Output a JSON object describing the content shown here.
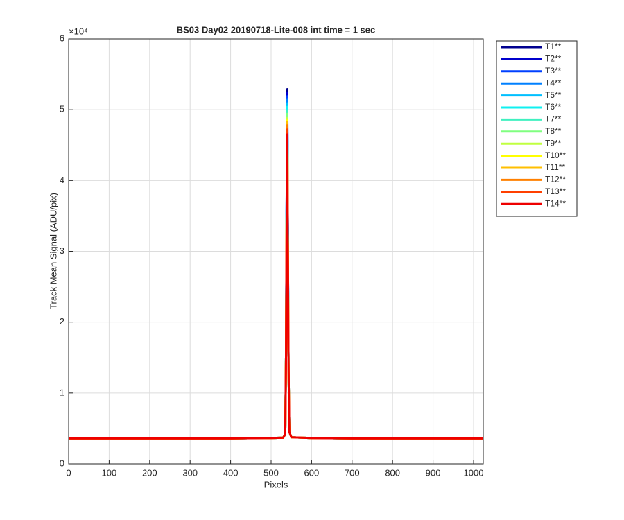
{
  "chart_data": {
    "type": "line",
    "title": "BS03 Day02 20190718-Lite-008 int time = 1 sec",
    "xlabel": "Pixels",
    "ylabel": "Track Mean Signal (ADU/pix)",
    "y_exponent_label": "×10⁴",
    "xlim": [
      0,
      1024
    ],
    "xticks": [
      0,
      100,
      200,
      300,
      400,
      500,
      600,
      700,
      800,
      900,
      1000
    ],
    "ylim": [
      0,
      60000
    ],
    "yticks": [
      {
        "value": 0,
        "label": "0"
      },
      {
        "value": 10000,
        "label": "1"
      },
      {
        "value": 20000,
        "label": "2"
      },
      {
        "value": 30000,
        "label": "3"
      },
      {
        "value": 40000,
        "label": "4"
      },
      {
        "value": 50000,
        "label": "5"
      },
      {
        "value": 60000,
        "label": "6"
      }
    ],
    "grid": true,
    "legend": "outside-right",
    "x": [
      0,
      100,
      200,
      300,
      400,
      500,
      530,
      535,
      537,
      539,
      540,
      541,
      543,
      545,
      550,
      600,
      700,
      800,
      900,
      1000,
      1024
    ],
    "series": [
      {
        "name": "T1**",
        "color": "#00008f",
        "values": [
          3600,
          3600,
          3600,
          3600,
          3600,
          3650,
          3700,
          4200,
          16000,
          45000,
          52900,
          37000,
          14000,
          4500,
          3750,
          3650,
          3600,
          3600,
          3600,
          3600,
          3600
        ]
      },
      {
        "name": "T2**",
        "color": "#0000cc",
        "values": [
          3600,
          3600,
          3600,
          3600,
          3600,
          3650,
          3700,
          4200,
          16000,
          44500,
          52400,
          36700,
          14000,
          4500,
          3750,
          3650,
          3600,
          3600,
          3600,
          3600,
          3600
        ]
      },
      {
        "name": "T3**",
        "color": "#0040ff",
        "values": [
          3600,
          3600,
          3600,
          3600,
          3600,
          3650,
          3700,
          4200,
          16000,
          44100,
          51900,
          36300,
          14000,
          4500,
          3750,
          3650,
          3600,
          3600,
          3600,
          3600,
          3600
        ]
      },
      {
        "name": "T4**",
        "color": "#0080ff",
        "values": [
          3600,
          3600,
          3600,
          3600,
          3600,
          3650,
          3700,
          4200,
          16000,
          43700,
          51400,
          36000,
          14000,
          4500,
          3750,
          3650,
          3600,
          3600,
          3600,
          3600,
          3600
        ]
      },
      {
        "name": "T5**",
        "color": "#00bfff",
        "values": [
          3600,
          3600,
          3600,
          3600,
          3600,
          3650,
          3700,
          4200,
          16000,
          43300,
          50900,
          35600,
          14000,
          4500,
          3750,
          3650,
          3600,
          3600,
          3600,
          3600,
          3600
        ]
      },
      {
        "name": "T6**",
        "color": "#10f0f0",
        "values": [
          3600,
          3600,
          3600,
          3600,
          3600,
          3650,
          3700,
          4200,
          16000,
          42800,
          50400,
          35300,
          14000,
          4500,
          3750,
          3650,
          3600,
          3600,
          3600,
          3600,
          3600
        ]
      },
      {
        "name": "T7**",
        "color": "#40f0c0",
        "values": [
          3600,
          3600,
          3600,
          3600,
          3600,
          3650,
          3700,
          4200,
          16000,
          42400,
          49900,
          34900,
          14000,
          4500,
          3750,
          3650,
          3600,
          3600,
          3600,
          3600,
          3600
        ]
      },
      {
        "name": "T8**",
        "color": "#80ff80",
        "values": [
          3600,
          3600,
          3600,
          3600,
          3600,
          3650,
          3700,
          4200,
          16000,
          42000,
          49400,
          34600,
          14000,
          4500,
          3750,
          3650,
          3600,
          3600,
          3600,
          3600,
          3600
        ]
      },
      {
        "name": "T9**",
        "color": "#c0ff40",
        "values": [
          3600,
          3600,
          3600,
          3600,
          3600,
          3650,
          3700,
          4200,
          16000,
          41500,
          48800,
          34200,
          14000,
          4500,
          3750,
          3650,
          3600,
          3600,
          3600,
          3600,
          3600
        ]
      },
      {
        "name": "T10**",
        "color": "#ffff00",
        "values": [
          3600,
          3600,
          3600,
          3600,
          3600,
          3650,
          3700,
          4200,
          16000,
          41200,
          48500,
          33900,
          14000,
          4500,
          3750,
          3650,
          3600,
          3600,
          3600,
          3600,
          3600
        ]
      },
      {
        "name": "T11**",
        "color": "#ffbf00",
        "values": [
          3600,
          3600,
          3600,
          3600,
          3600,
          3650,
          3700,
          4200,
          16000,
          41100,
          48300,
          33800,
          14000,
          4500,
          3750,
          3650,
          3600,
          3600,
          3600,
          3600,
          3600
        ]
      },
      {
        "name": "T12**",
        "color": "#ff8000",
        "values": [
          3600,
          3600,
          3600,
          3600,
          3600,
          3650,
          3700,
          4200,
          16000,
          40600,
          47800,
          33500,
          14000,
          4500,
          3750,
          3650,
          3600,
          3600,
          3600,
          3600,
          3600
        ]
      },
      {
        "name": "T13**",
        "color": "#ff4000",
        "values": [
          3600,
          3600,
          3600,
          3600,
          3600,
          3650,
          3700,
          4200,
          16000,
          40100,
          47200,
          33000,
          14000,
          4500,
          3750,
          3650,
          3600,
          3600,
          3600,
          3600,
          3600
        ]
      },
      {
        "name": "T14**",
        "color": "#ee0000",
        "values": [
          3600,
          3600,
          3600,
          3600,
          3600,
          3650,
          3700,
          4200,
          16000,
          39500,
          46500,
          32600,
          14000,
          4500,
          3750,
          3650,
          3600,
          3600,
          3600,
          3600,
          3600
        ]
      }
    ]
  }
}
